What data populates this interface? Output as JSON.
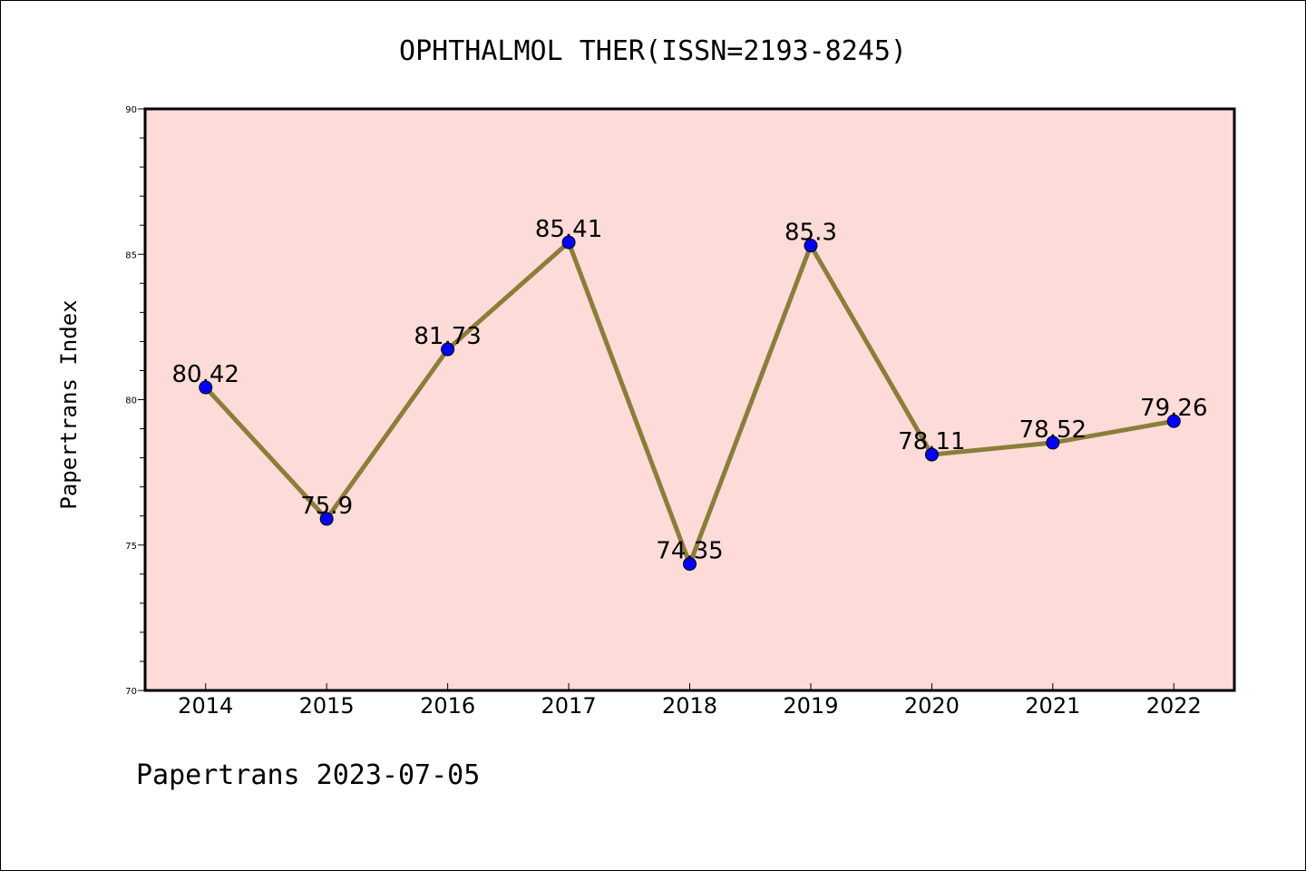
{
  "chart_data": {
    "type": "line",
    "title": "OPHTHALMOL THER(ISSN=2193-8245)",
    "xlabel": "",
    "ylabel": "Papertrans Index",
    "categories": [
      "2014",
      "2015",
      "2016",
      "2017",
      "2018",
      "2019",
      "2020",
      "2021",
      "2022"
    ],
    "series": [
      {
        "values": [
          80.42,
          75.9,
          81.73,
          85.41,
          74.35,
          85.3,
          78.11,
          78.52,
          79.26
        ],
        "labels": [
          "80.42",
          "75.9",
          "81.73",
          "85.41",
          "74.35",
          "85.3",
          "78.11",
          "78.52",
          "79.26"
        ]
      }
    ],
    "ylim": [
      70,
      90
    ],
    "yticks": [
      "70",
      "75",
      "80",
      "85",
      "90"
    ],
    "grid": false,
    "colors": {
      "plot_background": "#fddbd8",
      "line": "#8b7d3a",
      "marker": "#0000ff"
    }
  },
  "footer": {
    "text": "Papertrans 2023-07-05"
  }
}
